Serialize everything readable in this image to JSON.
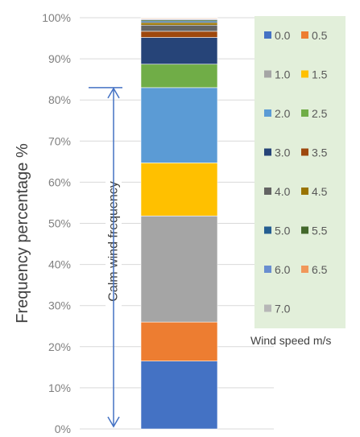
{
  "chart_data": {
    "type": "bar",
    "stacked": true,
    "title": "",
    "ylabel": "Frequency percentage  %",
    "xlabel": "",
    "ylim": [
      0,
      100
    ],
    "y_ticks": [
      "0%",
      "10%",
      "20%",
      "30%",
      "40%",
      "50%",
      "60%",
      "70%",
      "80%",
      "90%",
      "100%"
    ],
    "grid": true,
    "legend_title": "Wind speed m/s",
    "legend_position": "right",
    "legend_background": "#e2efda",
    "annotation": {
      "text": "Calm wind  frequency",
      "from": 0,
      "to": 83,
      "color": "#4472c4"
    },
    "series": [
      {
        "name": "0.0",
        "value": 16.5,
        "color": "#4472c4"
      },
      {
        "name": "0.5",
        "value": 9.5,
        "color": "#ed7d31"
      },
      {
        "name": "1.0",
        "value": 25.8,
        "color": "#a5a5a5"
      },
      {
        "name": "1.5",
        "value": 12.9,
        "color": "#ffc000"
      },
      {
        "name": "2.0",
        "value": 18.3,
        "color": "#5b9bd5"
      },
      {
        "name": "2.5",
        "value": 5.7,
        "color": "#70ad47"
      },
      {
        "name": "3.0",
        "value": 6.5,
        "color": "#264478"
      },
      {
        "name": "3.5",
        "value": 1.5,
        "color": "#9e480e"
      },
      {
        "name": "4.0",
        "value": 1.5,
        "color": "#636363"
      },
      {
        "name": "4.5",
        "value": 0.6,
        "color": "#997300"
      },
      {
        "name": "5.0",
        "value": 0.4,
        "color": "#255e91"
      },
      {
        "name": "5.5",
        "value": 0.3,
        "color": "#43682b"
      },
      {
        "name": "6.0",
        "value": 0.2,
        "color": "#698ed0"
      },
      {
        "name": "6.5",
        "value": 0.2,
        "color": "#f1975a"
      },
      {
        "name": "7.0",
        "value": 0.1,
        "color": "#b7b7b7"
      }
    ]
  }
}
